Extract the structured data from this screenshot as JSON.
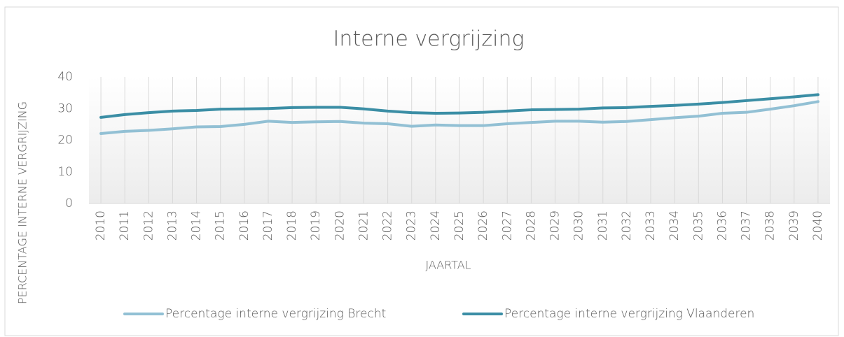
{
  "chart_data": {
    "type": "line",
    "title": "Interne vergrijzing",
    "x_label": "JAARTAL",
    "y_label": "PERCENTAGE INTERNE VERGRIJZING",
    "categories": [
      "2010",
      "2011",
      "2012",
      "2013",
      "2014",
      "2015",
      "2016",
      "2017",
      "2018",
      "2019",
      "2020",
      "2021",
      "2022",
      "2023",
      "2024",
      "2025",
      "2026",
      "2027",
      "2028",
      "2029",
      "2030",
      "2031",
      "2032",
      "2033",
      "2034",
      "2035",
      "2036",
      "2037",
      "2038",
      "2039",
      "2040"
    ],
    "series": [
      {
        "name": "Percentage interne vergrijzing Brecht",
        "color": "#92c0d4",
        "values": [
          22.1,
          22.8,
          23.1,
          23.6,
          24.2,
          24.3,
          25.0,
          26.0,
          25.6,
          25.8,
          25.9,
          25.4,
          25.2,
          24.4,
          24.8,
          24.6,
          24.6,
          25.2,
          25.6,
          26.0,
          26.0,
          25.7,
          25.9,
          26.5,
          27.1,
          27.6,
          28.5,
          28.8,
          29.8,
          30.9,
          32.2
        ]
      },
      {
        "name": "Percentage interne vergrijzing Vlaanderen",
        "color": "#3b8ea5",
        "values": [
          27.2,
          28.1,
          28.7,
          29.2,
          29.4,
          29.8,
          29.9,
          30.0,
          30.3,
          30.4,
          30.4,
          29.9,
          29.2,
          28.7,
          28.5,
          28.6,
          28.8,
          29.2,
          29.6,
          29.7,
          29.8,
          30.2,
          30.3,
          30.7,
          31.0,
          31.4,
          31.9,
          32.5,
          33.1,
          33.7,
          34.4
        ]
      }
    ],
    "ylim": [
      0,
      40
    ],
    "yticks": [
      0,
      10,
      20,
      30,
      40
    ],
    "grid": true,
    "legend": "bottom"
  }
}
